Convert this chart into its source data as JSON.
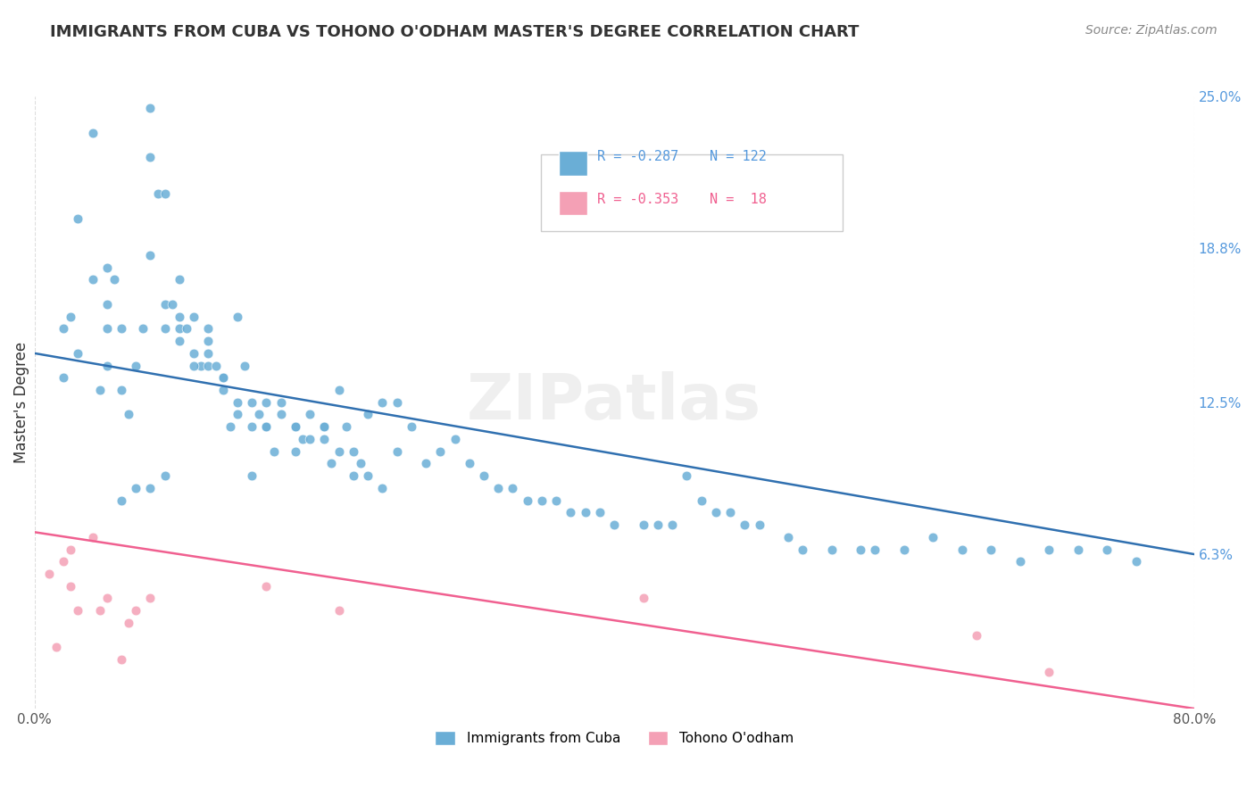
{
  "title": "IMMIGRANTS FROM CUBA VS TOHONO O'ODHAM MASTER'S DEGREE CORRELATION CHART",
  "source_text": "Source: ZipAtlas.com",
  "xlabel": "",
  "ylabel": "Master's Degree",
  "xlim": [
    0.0,
    0.8
  ],
  "ylim": [
    0.0,
    0.25
  ],
  "xtick_labels": [
    "0.0%",
    "80.0%"
  ],
  "ytick_labels_right": [
    "25.0%",
    "18.8%",
    "12.5%",
    "6.3%"
  ],
  "ytick_values_right": [
    0.25,
    0.188,
    0.125,
    0.063
  ],
  "legend_r1": "R = -0.287",
  "legend_n1": "N = 122",
  "legend_r2": "R = -0.353",
  "legend_n2": "N =  18",
  "color_cuba": "#6aaed6",
  "color_tohono": "#f4a0b5",
  "color_line_cuba": "#3070b0",
  "color_line_tohono": "#f06090",
  "watermark": "ZIPatlas",
  "background_color": "#ffffff",
  "grid_color": "#dddddd",
  "cuba_x": [
    0.02,
    0.025,
    0.03,
    0.04,
    0.04,
    0.045,
    0.05,
    0.05,
    0.05,
    0.055,
    0.06,
    0.06,
    0.065,
    0.07,
    0.075,
    0.08,
    0.08,
    0.08,
    0.085,
    0.09,
    0.09,
    0.09,
    0.095,
    0.1,
    0.1,
    0.1,
    0.105,
    0.11,
    0.11,
    0.115,
    0.12,
    0.12,
    0.12,
    0.125,
    0.13,
    0.13,
    0.135,
    0.14,
    0.14,
    0.145,
    0.15,
    0.15,
    0.155,
    0.16,
    0.16,
    0.165,
    0.17,
    0.18,
    0.18,
    0.185,
    0.19,
    0.2,
    0.2,
    0.205,
    0.21,
    0.215,
    0.22,
    0.225,
    0.23,
    0.24,
    0.25,
    0.25,
    0.26,
    0.27,
    0.28,
    0.29,
    0.3,
    0.31,
    0.32,
    0.33,
    0.34,
    0.35,
    0.36,
    0.37,
    0.38,
    0.39,
    0.4,
    0.42,
    0.43,
    0.44,
    0.45,
    0.46,
    0.47,
    0.48,
    0.49,
    0.5,
    0.52,
    0.53,
    0.55,
    0.57,
    0.58,
    0.6,
    0.62,
    0.64,
    0.66,
    0.68,
    0.7,
    0.72,
    0.74,
    0.76,
    0.02,
    0.03,
    0.05,
    0.06,
    0.07,
    0.08,
    0.09,
    0.1,
    0.11,
    0.12,
    0.13,
    0.14,
    0.15,
    0.16,
    0.17,
    0.18,
    0.19,
    0.2,
    0.21,
    0.22,
    0.23,
    0.24
  ],
  "cuba_y": [
    0.135,
    0.16,
    0.2,
    0.235,
    0.175,
    0.13,
    0.155,
    0.14,
    0.165,
    0.175,
    0.13,
    0.155,
    0.12,
    0.14,
    0.155,
    0.185,
    0.225,
    0.245,
    0.21,
    0.155,
    0.165,
    0.21,
    0.165,
    0.155,
    0.16,
    0.175,
    0.155,
    0.145,
    0.16,
    0.14,
    0.14,
    0.145,
    0.15,
    0.14,
    0.13,
    0.135,
    0.115,
    0.12,
    0.125,
    0.14,
    0.115,
    0.125,
    0.12,
    0.115,
    0.125,
    0.105,
    0.12,
    0.105,
    0.115,
    0.11,
    0.11,
    0.11,
    0.115,
    0.1,
    0.105,
    0.115,
    0.105,
    0.1,
    0.12,
    0.125,
    0.125,
    0.105,
    0.115,
    0.1,
    0.105,
    0.11,
    0.1,
    0.095,
    0.09,
    0.09,
    0.085,
    0.085,
    0.085,
    0.08,
    0.08,
    0.08,
    0.075,
    0.075,
    0.075,
    0.075,
    0.095,
    0.085,
    0.08,
    0.08,
    0.075,
    0.075,
    0.07,
    0.065,
    0.065,
    0.065,
    0.065,
    0.065,
    0.07,
    0.065,
    0.065,
    0.06,
    0.065,
    0.065,
    0.065,
    0.06,
    0.155,
    0.145,
    0.18,
    0.085,
    0.09,
    0.09,
    0.095,
    0.15,
    0.14,
    0.155,
    0.135,
    0.16,
    0.095,
    0.115,
    0.125,
    0.115,
    0.12,
    0.115,
    0.13,
    0.095,
    0.095,
    0.09
  ],
  "tohono_x": [
    0.01,
    0.015,
    0.02,
    0.025,
    0.025,
    0.03,
    0.04,
    0.045,
    0.05,
    0.06,
    0.065,
    0.07,
    0.08,
    0.16,
    0.21,
    0.42,
    0.65,
    0.7
  ],
  "tohono_y": [
    0.055,
    0.025,
    0.06,
    0.05,
    0.065,
    0.04,
    0.07,
    0.04,
    0.045,
    0.02,
    0.035,
    0.04,
    0.045,
    0.05,
    0.04,
    0.045,
    0.03,
    0.015
  ],
  "cuba_trend_x": [
    0.0,
    0.8
  ],
  "cuba_trend_y_start": 0.145,
  "cuba_trend_y_end": 0.063,
  "tohono_trend_x": [
    0.0,
    0.8
  ],
  "tohono_trend_y_start": 0.072,
  "tohono_trend_y_end": 0.0
}
